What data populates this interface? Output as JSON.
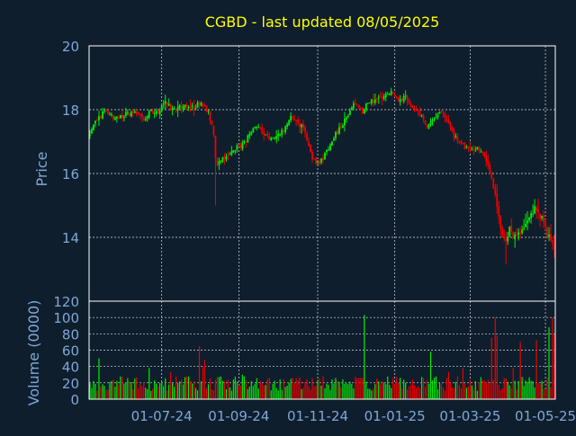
{
  "chart_data": {
    "type": "candlestick",
    "title": "CGBD - last updated 08/05/2025",
    "colors": {
      "background": "#0f1e2d",
      "plot_background": "#0f1e2d",
      "title": "#ffff00",
      "axis_text": "#7fa7d6",
      "frame": "#ffffff",
      "grid": "#ffffff",
      "up": "#00ee00",
      "down": "#ee0000"
    },
    "x_tick_labels": [
      "01-07-24",
      "01-09-24",
      "01-11-24",
      "01-01-25",
      "01-03-25",
      "01-05-25"
    ],
    "price_panel": {
      "ylabel": "Price",
      "ylim": [
        12,
        20
      ],
      "y_ticks": [
        14,
        16,
        18,
        20
      ],
      "grid": true
    },
    "volume_panel": {
      "ylabel": "Volume (0000)",
      "ylim": [
        0,
        120
      ],
      "y_ticks": [
        0,
        20,
        40,
        60,
        80,
        100,
        120
      ],
      "grid": true
    },
    "price_path": [
      [
        0,
        17.2
      ],
      [
        4,
        17.7
      ],
      [
        8,
        17.95
      ],
      [
        14,
        17.7
      ],
      [
        20,
        17.85
      ],
      [
        26,
        17.9
      ],
      [
        30,
        17.75
      ],
      [
        34,
        17.95
      ],
      [
        38,
        17.95
      ],
      [
        42,
        18.2
      ],
      [
        46,
        18.0
      ],
      [
        50,
        18.1
      ],
      [
        54,
        18.15
      ],
      [
        58,
        18.1
      ],
      [
        62,
        18.2
      ],
      [
        66,
        17.9
      ],
      [
        69,
        17.3
      ],
      [
        70,
        16.4
      ],
      [
        72,
        16.3
      ],
      [
        76,
        16.55
      ],
      [
        80,
        16.75
      ],
      [
        84,
        16.85
      ],
      [
        88,
        17.15
      ],
      [
        92,
        17.55
      ],
      [
        96,
        17.3
      ],
      [
        100,
        17.1
      ],
      [
        104,
        17.2
      ],
      [
        108,
        17.35
      ],
      [
        112,
        17.8
      ],
      [
        116,
        17.6
      ],
      [
        120,
        17.3
      ],
      [
        124,
        16.5
      ],
      [
        128,
        16.3
      ],
      [
        132,
        16.7
      ],
      [
        136,
        17.15
      ],
      [
        140,
        17.5
      ],
      [
        144,
        17.85
      ],
      [
        148,
        18.2
      ],
      [
        152,
        17.95
      ],
      [
        156,
        18.25
      ],
      [
        160,
        18.3
      ],
      [
        164,
        18.45
      ],
      [
        168,
        18.5
      ],
      [
        172,
        18.35
      ],
      [
        176,
        18.4
      ],
      [
        180,
        18.1
      ],
      [
        184,
        17.9
      ],
      [
        188,
        17.5
      ],
      [
        192,
        17.8
      ],
      [
        196,
        17.9
      ],
      [
        200,
        17.5
      ],
      [
        204,
        17.1
      ],
      [
        208,
        16.9
      ],
      [
        212,
        16.7
      ],
      [
        216,
        16.8
      ],
      [
        220,
        16.5
      ],
      [
        224,
        15.9
      ],
      [
        228,
        14.7
      ],
      [
        230,
        14.0
      ],
      [
        232,
        13.85
      ],
      [
        234,
        14.35
      ],
      [
        236,
        14.0
      ],
      [
        240,
        14.2
      ],
      [
        244,
        14.5
      ],
      [
        248,
        14.9
      ],
      [
        252,
        14.6
      ],
      [
        255,
        14.1
      ],
      [
        257,
        13.9
      ],
      [
        259,
        13.6
      ]
    ],
    "volume_profile": {
      "base_min": 10,
      "base_max": 28,
      "spikes": [
        [
          5,
          50
        ],
        [
          33,
          38
        ],
        [
          45,
          33
        ],
        [
          54,
          28
        ],
        [
          61,
          65
        ],
        [
          63,
          40
        ],
        [
          64,
          48
        ],
        [
          72,
          27
        ],
        [
          80,
          24
        ],
        [
          85,
          30
        ],
        [
          100,
          26
        ],
        [
          116,
          23
        ],
        [
          130,
          28
        ],
        [
          153,
          103
        ],
        [
          160,
          25
        ],
        [
          176,
          20
        ],
        [
          190,
          58
        ],
        [
          200,
          33
        ],
        [
          208,
          38
        ],
        [
          218,
          27
        ],
        [
          224,
          75
        ],
        [
          226,
          100
        ],
        [
          227,
          78
        ],
        [
          232,
          25
        ],
        [
          236,
          38
        ],
        [
          240,
          70
        ],
        [
          249,
          72
        ],
        [
          256,
          88
        ],
        [
          258,
          100
        ],
        [
          259,
          80
        ]
      ]
    },
    "generator": {
      "n_bars": 260,
      "seed": 7,
      "x_tick_bar_positions": [
        40,
        83,
        127,
        170,
        212,
        254
      ]
    }
  }
}
